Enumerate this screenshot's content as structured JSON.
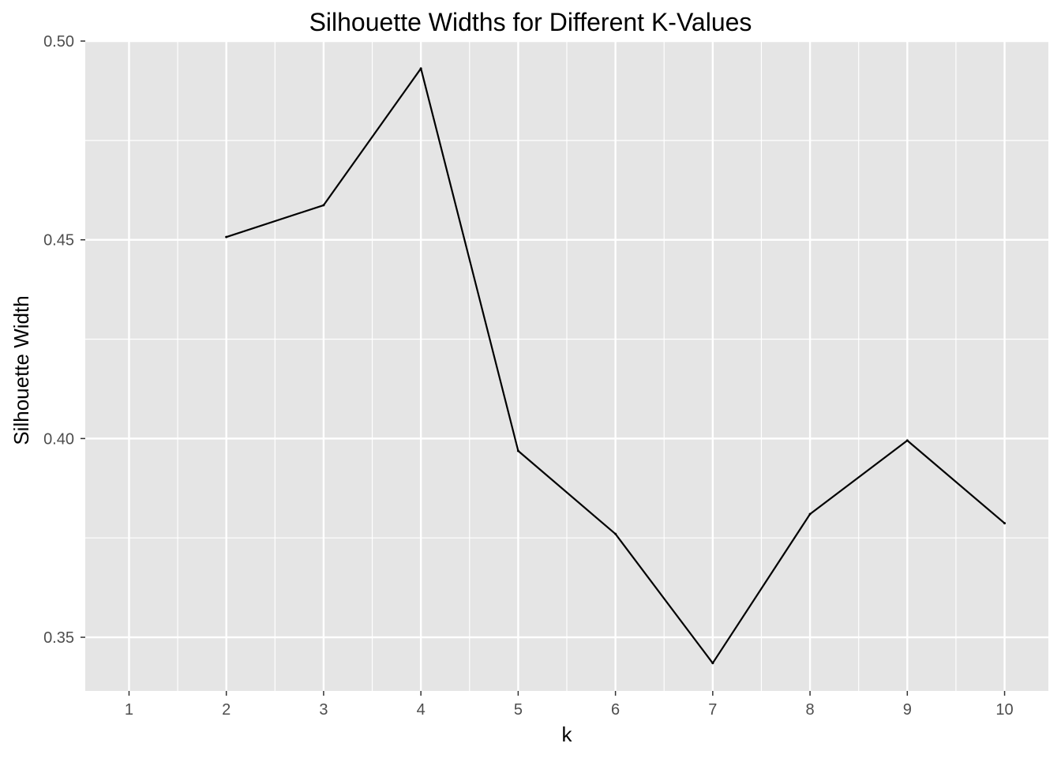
{
  "chart_data": {
    "type": "line",
    "title": "Silhouette Widths for Different K-Values",
    "xlabel": "k",
    "ylabel": "Silhouette Width",
    "x": [
      2,
      3,
      4,
      5,
      6,
      7,
      8,
      9,
      10
    ],
    "y": [
      0.4507,
      0.4587,
      0.4931,
      0.3969,
      0.376,
      0.3435,
      0.381,
      0.3995,
      0.3787
    ],
    "x_ticks": [
      "1",
      "2",
      "3",
      "4",
      "5",
      "6",
      "7",
      "8",
      "9",
      "10"
    ],
    "y_ticks": [
      "0.35",
      "0.40",
      "0.45",
      "0.50"
    ],
    "xlim": [
      0.55,
      10.45
    ],
    "ylim": [
      0.3365,
      0.5
    ],
    "grid": true,
    "panel_background": "#E5E5E5",
    "grid_color": "#FFFFFF",
    "line_color": "#000000"
  }
}
